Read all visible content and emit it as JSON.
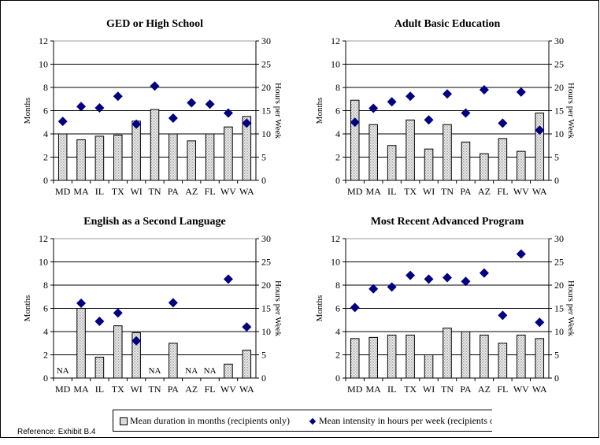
{
  "reference": "Reference: Exhibit B.4",
  "legend": {
    "bar_label": "Mean duration in months (recipients only)",
    "diamond_label": "Mean intensity in hours per week (recipients only)"
  },
  "colors": {
    "bar_fill": "#d9d9d9",
    "diamond": "#000080"
  },
  "chart_data": [
    {
      "type": "bar+scatter",
      "title": "GED or High School",
      "ylabel": "Months",
      "y2label": "Hours per Week",
      "ylim": [
        0,
        12
      ],
      "y2lim": [
        0,
        30
      ],
      "yticks": [
        0,
        2,
        4,
        6,
        8,
        10,
        12
      ],
      "y2ticks": [
        0,
        5,
        10,
        15,
        20,
        25,
        30
      ],
      "categories": [
        "MD",
        "MA",
        "IL",
        "TX",
        "WI",
        "TN",
        "PA",
        "AZ",
        "FL",
        "WV",
        "WA"
      ],
      "months": [
        4.0,
        3.5,
        3.8,
        3.9,
        5.1,
        6.1,
        4.0,
        3.4,
        4.0,
        4.6,
        5.5
      ],
      "hours": [
        12.7,
        15.9,
        15.6,
        18.1,
        12.1,
        20.3,
        13.4,
        16.7,
        16.4,
        14.5,
        12.3
      ]
    },
    {
      "type": "bar+scatter",
      "title": "Adult Basic Education",
      "ylabel": "Months",
      "y2label": "Hours per Week",
      "ylim": [
        0,
        12
      ],
      "y2lim": [
        0,
        30
      ],
      "yticks": [
        0,
        2,
        4,
        6,
        8,
        10,
        12
      ],
      "y2ticks": [
        0,
        5,
        10,
        15,
        20,
        25,
        30
      ],
      "categories": [
        "MD",
        "MA",
        "IL",
        "TX",
        "WI",
        "TN",
        "PA",
        "AZ",
        "FL",
        "WV",
        "WA"
      ],
      "months": [
        6.9,
        4.8,
        3.0,
        5.2,
        2.7,
        4.8,
        3.3,
        2.3,
        3.6,
        2.5,
        5.8
      ],
      "hours": [
        12.5,
        15.5,
        16.9,
        18.1,
        13.0,
        18.6,
        14.5,
        19.5,
        12.3,
        19.0,
        10.8
      ]
    },
    {
      "type": "bar+scatter",
      "title": "English as a Second Language",
      "ylabel": "Months",
      "y2label": "Hours per Week",
      "ylim": [
        0,
        12
      ],
      "y2lim": [
        0,
        30
      ],
      "yticks": [
        0,
        2,
        4,
        6,
        8,
        10,
        12
      ],
      "y2ticks": [
        0,
        5,
        10,
        15,
        20,
        25,
        30
      ],
      "categories": [
        "MD",
        "MA",
        "IL",
        "TX",
        "WI",
        "TN",
        "PA",
        "AZ",
        "FL",
        "WV",
        "WA"
      ],
      "months": [
        null,
        6.0,
        1.8,
        4.5,
        3.9,
        null,
        3.0,
        null,
        null,
        1.2,
        2.4
      ],
      "hours": [
        null,
        16.1,
        12.2,
        14.0,
        8.0,
        null,
        16.2,
        null,
        null,
        21.3,
        11.0
      ],
      "na_label": "NA"
    },
    {
      "type": "bar+scatter",
      "title": "Most Recent Advanced Program",
      "ylabel": "Months",
      "y2label": "Hours per Week",
      "ylim": [
        0,
        12
      ],
      "y2lim": [
        0,
        30
      ],
      "yticks": [
        0,
        2,
        4,
        6,
        8,
        10,
        12
      ],
      "y2ticks": [
        0,
        5,
        10,
        15,
        20,
        25,
        30
      ],
      "categories": [
        "MD",
        "MA",
        "IL",
        "TX",
        "WI",
        "TN",
        "PA",
        "AZ",
        "FL",
        "WV",
        "WA"
      ],
      "months": [
        3.4,
        3.5,
        3.7,
        3.7,
        2.0,
        4.3,
        4.0,
        3.7,
        3.0,
        3.7,
        3.4
      ],
      "hours": [
        15.2,
        19.2,
        19.6,
        22.1,
        21.3,
        21.6,
        20.8,
        22.6,
        13.5,
        26.7,
        12.0
      ]
    }
  ]
}
